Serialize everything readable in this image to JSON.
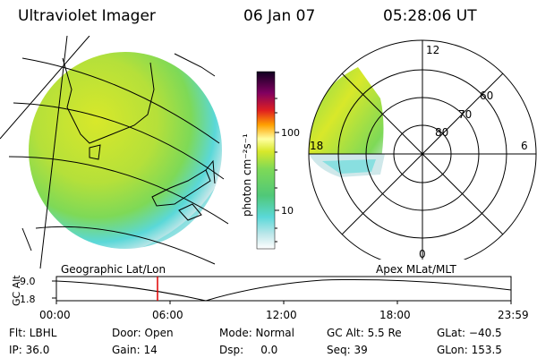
{
  "header": {
    "title": "Ultraviolet Imager",
    "date": "06 Jan 07",
    "time": "05:28:06 UT"
  },
  "colorbar": {
    "label": "photon cm⁻²s⁻¹",
    "ticks": [
      "100",
      "10"
    ],
    "scale": "log"
  },
  "map_labels": {
    "left": "Geographic Lat/Lon",
    "right": "Apex MLat/MLT"
  },
  "polar": {
    "mlt_labels": [
      "12",
      "18",
      "6",
      "0"
    ],
    "lat_labels": [
      "60",
      "70",
      "80"
    ]
  },
  "altitude_plot": {
    "ylabel": "GC Alt",
    "yticks": [
      "9.0",
      "1.8"
    ],
    "xticks": [
      "00:00",
      "06:00",
      "12:00",
      "18:00",
      "23:59"
    ],
    "current_time_marker": "05:28"
  },
  "status": {
    "flt": "Flt: LBHL",
    "door": "Door: Open",
    "mode": "Mode: Normal",
    "gc_alt": "GC Alt: 5.5 Re",
    "glat": "GLat: −40.5",
    "ip": "IP: 36.0",
    "gain": "Gain: 14",
    "dsp": "Dsp:     0.0",
    "seq": "Seq: 39",
    "glon": "GLon: 153.5"
  },
  "colors": {
    "ring_fill": "#cfe8ea",
    "lowlight_cyan": "#5ad8d8",
    "mid_green": "#7ed957",
    "bright_yellow": "#d8e82a",
    "marker_red": "#e00000"
  }
}
